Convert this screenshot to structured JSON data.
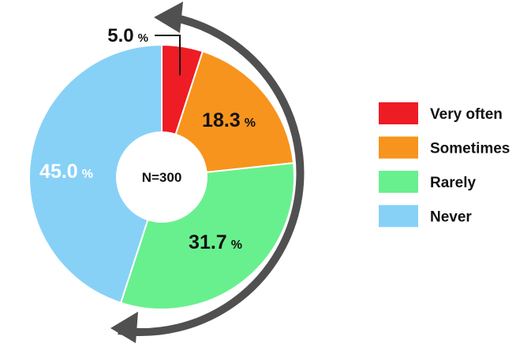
{
  "chart_data": {
    "type": "pie",
    "donut": true,
    "center_label": "N=300",
    "categories": [
      "Very often",
      "Sometimes",
      "Rarely",
      "Never"
    ],
    "values": [
      5.0,
      18.3,
      31.7,
      45.0
    ],
    "value_labels": [
      "5.0",
      "18.3",
      "31.7",
      "45.0"
    ],
    "unit": "%",
    "colors": [
      "#ee1c24",
      "#f7941d",
      "#69f08e",
      "#87d1f7"
    ],
    "label_colors": [
      "#111111",
      "#111111",
      "#111111",
      "#ffffff"
    ],
    "arrow_color": "#505050",
    "legend_position": "right",
    "direction": "clockwise"
  }
}
